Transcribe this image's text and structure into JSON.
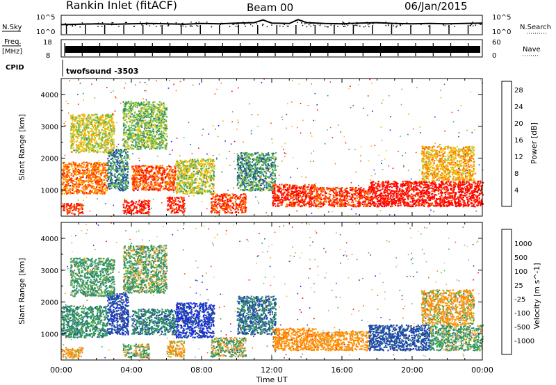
{
  "header": {
    "station": "Rankin Inlet (fitACF)",
    "beam": "Beam 00",
    "date": "06/Jan/2015"
  },
  "summary": {
    "nsky_label": "N.Sky",
    "nsearch_label": "N.Search",
    "freq_label": "Freq.",
    "freq_unit": "[MHz]",
    "nave_label": "Nave",
    "cpid_label": "CPID",
    "cpid_value": "twofsound -3503",
    "noise_ticks": [
      "10^5",
      "10^0"
    ],
    "freq_ticks": [
      "18",
      "8"
    ],
    "nave_ticks": [
      "60",
      "0"
    ]
  },
  "x_axis": {
    "label": "Time UT",
    "ticks": [
      "00:00",
      "04:00",
      "08:00",
      "12:00",
      "16:00",
      "20:00",
      "00:00"
    ]
  },
  "colors": {
    "power": [
      "#1a1aff",
      "#1f48a8",
      "#2f8f66",
      "#66bb55",
      "#e0d020",
      "#ffaa00",
      "#ff7000",
      "#ff3a00",
      "#ff0000"
    ],
    "velocity": [
      "#ff0000",
      "#ff5500",
      "#ff8c00",
      "#ffb030",
      "#aaaaaa",
      "#c8c8c8",
      "#55b845",
      "#2f8f66",
      "#1f48a8",
      "#1a1aff"
    ]
  },
  "chart_data": [
    {
      "type": "line",
      "title": "N.Sky / N.Search",
      "x_range_hours": [
        0,
        24
      ],
      "ylim": [
        "10^0",
        "10^5"
      ],
      "ylabel": "N.Sky",
      "ylabel_right": "N.Search",
      "series": [
        {
          "name": "N.Sky",
          "x": [
            0,
            1,
            2,
            3,
            4,
            5,
            6,
            7,
            8,
            9,
            10,
            11,
            11.5,
            12,
            13,
            13.5,
            14,
            15,
            16,
            17,
            18,
            19,
            20,
            21,
            22,
            23,
            24
          ],
          "values": [
            2.6,
            2.7,
            2.8,
            2.7,
            2.8,
            2.9,
            2.8,
            2.7,
            2.9,
            2.8,
            3.0,
            3.1,
            3.8,
            3.0,
            2.9,
            3.9,
            3.1,
            2.9,
            2.8,
            3.0,
            3.1,
            2.9,
            2.8,
            2.9,
            2.8,
            2.9,
            3.0
          ]
        }
      ]
    },
    {
      "type": "line",
      "title": "Freq. / Nave",
      "x_range_hours": [
        0,
        24
      ],
      "ylim_freq_mhz": [
        8,
        18
      ],
      "ylim_nave": [
        0,
        60
      ],
      "series": [
        {
          "name": "Freq.",
          "x": [
            0,
            24
          ],
          "values": [
            10.5,
            10.5
          ]
        }
      ]
    },
    {
      "type": "heatmap",
      "xlabel": "",
      "ylabel": "Slant Range [km]",
      "x_range_hours": [
        0,
        24
      ],
      "ylim": [
        180,
        4500
      ],
      "yticks": [
        "1000",
        "2000",
        "3000",
        "4000"
      ],
      "colorbar_label": "Power [dB]",
      "colorbar_ticks": [
        "4",
        "8",
        "12",
        "16",
        "20",
        "24",
        "28"
      ],
      "colorbar_range": [
        0,
        30
      ],
      "regions": [
        {
          "t0": 0.0,
          "t1": 2.6,
          "r0": 900,
          "r1": 1900,
          "value": 22
        },
        {
          "t0": 0.0,
          "t1": 1.2,
          "r0": 250,
          "r1": 600,
          "value": 26
        },
        {
          "t0": 2.6,
          "t1": 3.8,
          "r0": 1000,
          "r1": 2300,
          "value": 8
        },
        {
          "t0": 3.5,
          "t1": 5.0,
          "r0": 280,
          "r1": 700,
          "value": 28
        },
        {
          "t0": 4.0,
          "t1": 6.5,
          "r0": 1000,
          "r1": 1800,
          "value": 24
        },
        {
          "t0": 6.0,
          "t1": 7.0,
          "r0": 300,
          "r1": 800,
          "value": 28
        },
        {
          "t0": 6.5,
          "t1": 8.7,
          "r0": 900,
          "r1": 2000,
          "value": 14
        },
        {
          "t0": 8.5,
          "t1": 10.5,
          "r0": 300,
          "r1": 900,
          "value": 25
        },
        {
          "t0": 10.0,
          "t1": 12.2,
          "r0": 1000,
          "r1": 2200,
          "value": 9
        },
        {
          "t0": 12.0,
          "t1": 14.5,
          "r0": 500,
          "r1": 1200,
          "value": 27
        },
        {
          "t0": 14.5,
          "t1": 17.5,
          "r0": 500,
          "r1": 1100,
          "value": 25
        },
        {
          "t0": 17.5,
          "t1": 24.0,
          "r0": 500,
          "r1": 1300,
          "value": 29
        },
        {
          "t0": 0.5,
          "t1": 3.0,
          "r0": 2200,
          "r1": 3400,
          "value": 15
        },
        {
          "t0": 3.5,
          "t1": 6.0,
          "r0": 2300,
          "r1": 3800,
          "value": 12
        },
        {
          "t0": 20.5,
          "t1": 23.5,
          "r0": 1300,
          "r1": 2400,
          "value": 18
        }
      ]
    },
    {
      "type": "heatmap",
      "xlabel": "Time UT",
      "ylabel": "Slant Range [km]",
      "x_range_hours": [
        0,
        24
      ],
      "ylim": [
        180,
        4500
      ],
      "yticks": [
        "1000",
        "2000",
        "3000",
        "4000"
      ],
      "colorbar_label": "Velocity [m s^-1]",
      "colorbar_ticks": [
        "1000",
        "500",
        "100",
        "25",
        "-25",
        "-100",
        "-500",
        "-1000"
      ],
      "colorbar_range": [
        -1000,
        1000
      ],
      "regions": [
        {
          "t0": 0.0,
          "t1": 2.6,
          "r0": 900,
          "r1": 1900,
          "value": 300
        },
        {
          "t0": 0.0,
          "t1": 1.2,
          "r0": 250,
          "r1": 600,
          "value": -200
        },
        {
          "t0": 2.6,
          "t1": 3.8,
          "r0": 1000,
          "r1": 2300,
          "value": 800
        },
        {
          "t0": 3.5,
          "t1": 5.0,
          "r0": 280,
          "r1": 700,
          "value": 60
        },
        {
          "t0": 4.0,
          "t1": 6.5,
          "r0": 1000,
          "r1": 1800,
          "value": 400
        },
        {
          "t0": 6.0,
          "t1": 7.0,
          "r0": 300,
          "r1": 800,
          "value": -150
        },
        {
          "t0": 6.5,
          "t1": 8.7,
          "r0": 900,
          "r1": 2000,
          "value": 900
        },
        {
          "t0": 8.5,
          "t1": 10.5,
          "r0": 300,
          "r1": 900,
          "value": 80
        },
        {
          "t0": 10.0,
          "t1": 12.2,
          "r0": 1000,
          "r1": 2200,
          "value": 500
        },
        {
          "t0": 12.0,
          "t1": 14.5,
          "r0": 500,
          "r1": 1200,
          "value": -300
        },
        {
          "t0": 14.5,
          "t1": 17.5,
          "r0": 500,
          "r1": 1100,
          "value": -250
        },
        {
          "t0": 17.5,
          "t1": 21.0,
          "r0": 500,
          "r1": 1300,
          "value": 700
        },
        {
          "t0": 21.0,
          "t1": 24.0,
          "r0": 500,
          "r1": 1300,
          "value": 150
        },
        {
          "t0": 0.5,
          "t1": 3.0,
          "r0": 2200,
          "r1": 3400,
          "value": 200
        },
        {
          "t0": 3.5,
          "t1": 6.0,
          "r0": 2300,
          "r1": 3800,
          "value": 120
        },
        {
          "t0": 20.5,
          "t1": 23.5,
          "r0": 1300,
          "r1": 2400,
          "value": -120
        }
      ]
    }
  ]
}
